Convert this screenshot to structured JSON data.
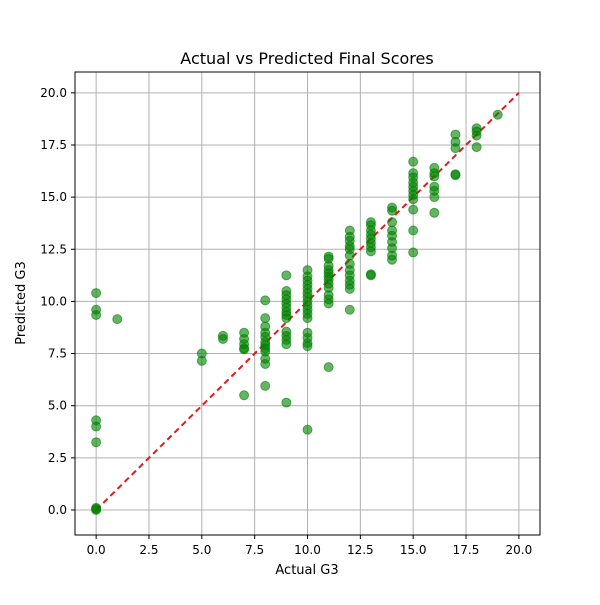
{
  "chart_data": {
    "type": "scatter",
    "title": "Actual vs Predicted Final Scores",
    "xlabel": "Actual G3",
    "ylabel": "Predicted G3",
    "xlim": [
      -1,
      21
    ],
    "ylim": [
      -1.2,
      21
    ],
    "xticks": [
      0.0,
      2.5,
      5.0,
      7.5,
      10.0,
      12.5,
      15.0,
      17.5,
      20.0
    ],
    "yticks": [
      0.0,
      2.5,
      5.0,
      7.5,
      10.0,
      12.5,
      15.0,
      17.5,
      20.0
    ],
    "grid": true,
    "colors": {
      "points": "#008000",
      "reference_line": "#e31a1c",
      "grid": "#b0b0b0"
    },
    "reference_line": {
      "style": "dashed",
      "from": [
        0,
        0
      ],
      "to": [
        20,
        20
      ]
    },
    "series": [
      {
        "points": [
          [
            0,
            10.4
          ],
          [
            0,
            9.6
          ],
          [
            0,
            9.35
          ],
          [
            0,
            4.3
          ],
          [
            0,
            4.0
          ],
          [
            0,
            3.25
          ],
          [
            0,
            0.1
          ],
          [
            0,
            0.05
          ],
          [
            0,
            0.0
          ],
          [
            1,
            9.15
          ],
          [
            5,
            7.5
          ],
          [
            5,
            7.15
          ],
          [
            6,
            8.35
          ],
          [
            6,
            8.2
          ],
          [
            7,
            8.5
          ],
          [
            7,
            8.2
          ],
          [
            7,
            7.95
          ],
          [
            7,
            7.75
          ],
          [
            7,
            7.7
          ],
          [
            7,
            5.5
          ],
          [
            8,
            10.05
          ],
          [
            8,
            9.2
          ],
          [
            8,
            8.8
          ],
          [
            8,
            8.5
          ],
          [
            8,
            8.3
          ],
          [
            8,
            8.05
          ],
          [
            8,
            7.9
          ],
          [
            8,
            7.75
          ],
          [
            8,
            7.6
          ],
          [
            8,
            7.25
          ],
          [
            8,
            7.0
          ],
          [
            8,
            5.95
          ],
          [
            9,
            11.25
          ],
          [
            9,
            10.5
          ],
          [
            9,
            10.3
          ],
          [
            9,
            10.1
          ],
          [
            9,
            9.9
          ],
          [
            9,
            9.7
          ],
          [
            9,
            9.5
          ],
          [
            9,
            9.35
          ],
          [
            9,
            9.2
          ],
          [
            9,
            8.55
          ],
          [
            9,
            8.35
          ],
          [
            9,
            8.15
          ],
          [
            9,
            7.95
          ],
          [
            9,
            5.15
          ],
          [
            10,
            11.5
          ],
          [
            10,
            11.2
          ],
          [
            10,
            11.0
          ],
          [
            10,
            10.8
          ],
          [
            10,
            10.6
          ],
          [
            10,
            10.4
          ],
          [
            10,
            10.2
          ],
          [
            10,
            10.0
          ],
          [
            10,
            9.8
          ],
          [
            10,
            9.6
          ],
          [
            10,
            9.4
          ],
          [
            10,
            9.2
          ],
          [
            10,
            8.5
          ],
          [
            10,
            8.25
          ],
          [
            10,
            8.0
          ],
          [
            10,
            7.85
          ],
          [
            10,
            3.85
          ],
          [
            11,
            12.15
          ],
          [
            11,
            12.05
          ],
          [
            11,
            11.7
          ],
          [
            11,
            11.5
          ],
          [
            11,
            11.35
          ],
          [
            11,
            11.2
          ],
          [
            11,
            11.05
          ],
          [
            11,
            10.85
          ],
          [
            11,
            10.65
          ],
          [
            11,
            10.3
          ],
          [
            11,
            10.1
          ],
          [
            11,
            9.9
          ],
          [
            11,
            6.85
          ],
          [
            12,
            13.4
          ],
          [
            12,
            13.1
          ],
          [
            12,
            12.9
          ],
          [
            12,
            12.65
          ],
          [
            12,
            12.5
          ],
          [
            12,
            12.2
          ],
          [
            12,
            11.8
          ],
          [
            12,
            11.5
          ],
          [
            12,
            11.25
          ],
          [
            12,
            11.0
          ],
          [
            12,
            10.8
          ],
          [
            12,
            10.6
          ],
          [
            12,
            9.6
          ],
          [
            13,
            13.8
          ],
          [
            13,
            13.65
          ],
          [
            13,
            13.4
          ],
          [
            13,
            13.2
          ],
          [
            13,
            13.0
          ],
          [
            13,
            12.8
          ],
          [
            13,
            12.6
          ],
          [
            13,
            12.4
          ],
          [
            13,
            11.3
          ],
          [
            13,
            11.25
          ],
          [
            14,
            14.5
          ],
          [
            14,
            14.35
          ],
          [
            14,
            13.8
          ],
          [
            14,
            13.4
          ],
          [
            14,
            13.15
          ],
          [
            14,
            12.85
          ],
          [
            14,
            12.55
          ],
          [
            14,
            12.2
          ],
          [
            14,
            12.0
          ],
          [
            15,
            16.7
          ],
          [
            15,
            16.15
          ],
          [
            15,
            15.95
          ],
          [
            15,
            15.7
          ],
          [
            15,
            15.5
          ],
          [
            15,
            15.3
          ],
          [
            15,
            15.1
          ],
          [
            15,
            14.9
          ],
          [
            15,
            14.4
          ],
          [
            15,
            13.4
          ],
          [
            15,
            12.35
          ],
          [
            16,
            16.4
          ],
          [
            16,
            16.15
          ],
          [
            16,
            16.0
          ],
          [
            16,
            15.5
          ],
          [
            16,
            15.3
          ],
          [
            16,
            15.0
          ],
          [
            16,
            14.25
          ],
          [
            17,
            18.0
          ],
          [
            17,
            17.65
          ],
          [
            17,
            17.35
          ],
          [
            17,
            16.1
          ],
          [
            17,
            16.05
          ],
          [
            18,
            18.3
          ],
          [
            18,
            18.15
          ],
          [
            18,
            17.95
          ],
          [
            18,
            17.4
          ],
          [
            19,
            18.95
          ]
        ]
      }
    ]
  }
}
